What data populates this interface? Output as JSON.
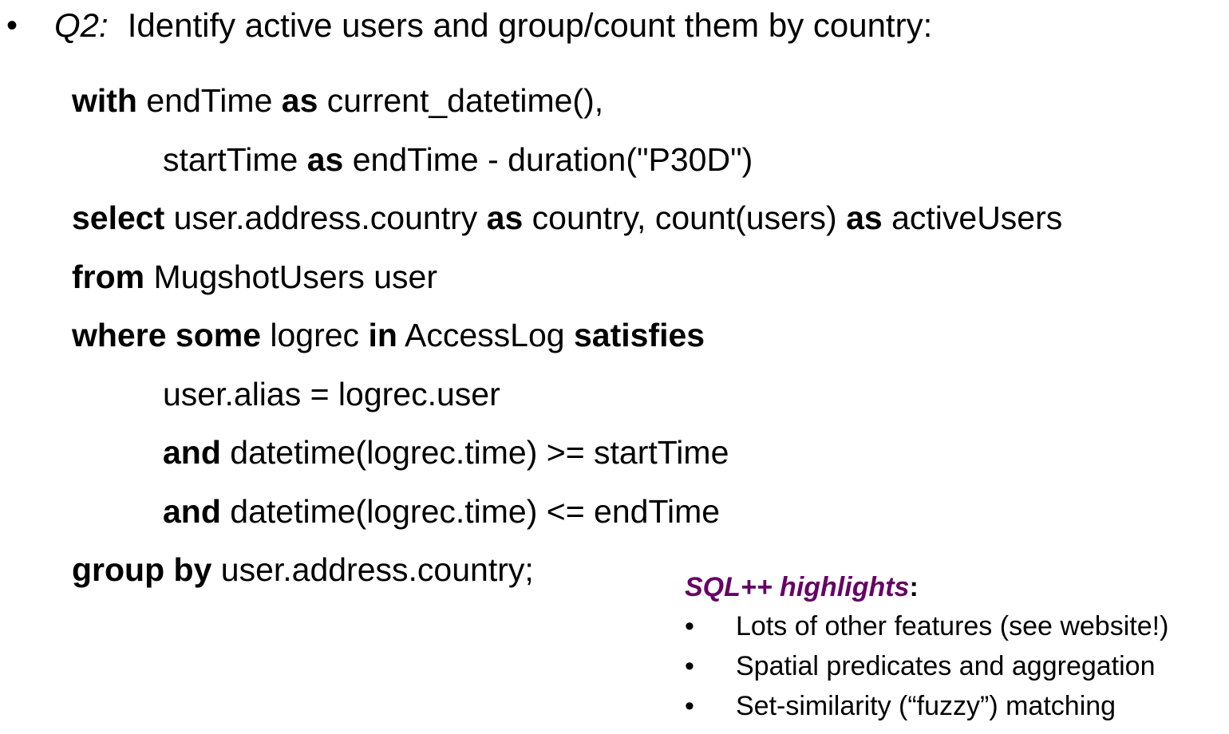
{
  "slide": {
    "bullet_symbol": "•",
    "question_label": "Q2:",
    "question_text": "Identify active users and group/count them by country:"
  },
  "code": {
    "lines": [
      {
        "indent": 0,
        "segments": [
          {
            "text": "with",
            "bold": true
          },
          {
            "text": " endTime ",
            "bold": false
          },
          {
            "text": "as",
            "bold": true
          },
          {
            "text": " current_datetime(),",
            "bold": false
          }
        ]
      },
      {
        "indent": 1,
        "segments": [
          {
            "text": "startTime ",
            "bold": false
          },
          {
            "text": "as",
            "bold": true
          },
          {
            "text": " endTime - duration(\"P30D\")",
            "bold": false
          }
        ]
      },
      {
        "indent": 0,
        "segments": [
          {
            "text": "select",
            "bold": true
          },
          {
            "text": " user.address.country ",
            "bold": false
          },
          {
            "text": "as",
            "bold": true
          },
          {
            "text": " country, count(users) ",
            "bold": false
          },
          {
            "text": "as",
            "bold": true
          },
          {
            "text": " activeUsers",
            "bold": false
          }
        ]
      },
      {
        "indent": 0,
        "segments": [
          {
            "text": "from",
            "bold": true
          },
          {
            "text": " MugshotUsers user",
            "bold": false
          }
        ]
      },
      {
        "indent": 0,
        "segments": [
          {
            "text": "where some",
            "bold": true
          },
          {
            "text": " logrec ",
            "bold": false
          },
          {
            "text": "in",
            "bold": true
          },
          {
            "text": " AccessLog ",
            "bold": false
          },
          {
            "text": "satisfies",
            "bold": true
          }
        ]
      },
      {
        "indent": 1,
        "segments": [
          {
            "text": "user.alias = logrec.user",
            "bold": false
          }
        ]
      },
      {
        "indent": 1,
        "segments": [
          {
            "text": "and",
            "bold": true
          },
          {
            "text": " datetime(logrec.time) >= startTime",
            "bold": false
          }
        ]
      },
      {
        "indent": 1,
        "segments": [
          {
            "text": "and",
            "bold": true
          },
          {
            "text": " datetime(logrec.time) <= endTime",
            "bold": false
          }
        ]
      },
      {
        "indent": 0,
        "segments": [
          {
            "text": "group by",
            "bold": true
          },
          {
            "text": " user.address.country;",
            "bold": false
          }
        ]
      }
    ]
  },
  "highlights": {
    "title": "SQL++ highlights",
    "title_suffix": ":",
    "title_color": "#660066",
    "bullet_symbol": "•",
    "items": [
      "Lots of other features (see website!)",
      "Spatial predicates and aggregation",
      "Set-similarity (“fuzzy”) matching"
    ]
  }
}
